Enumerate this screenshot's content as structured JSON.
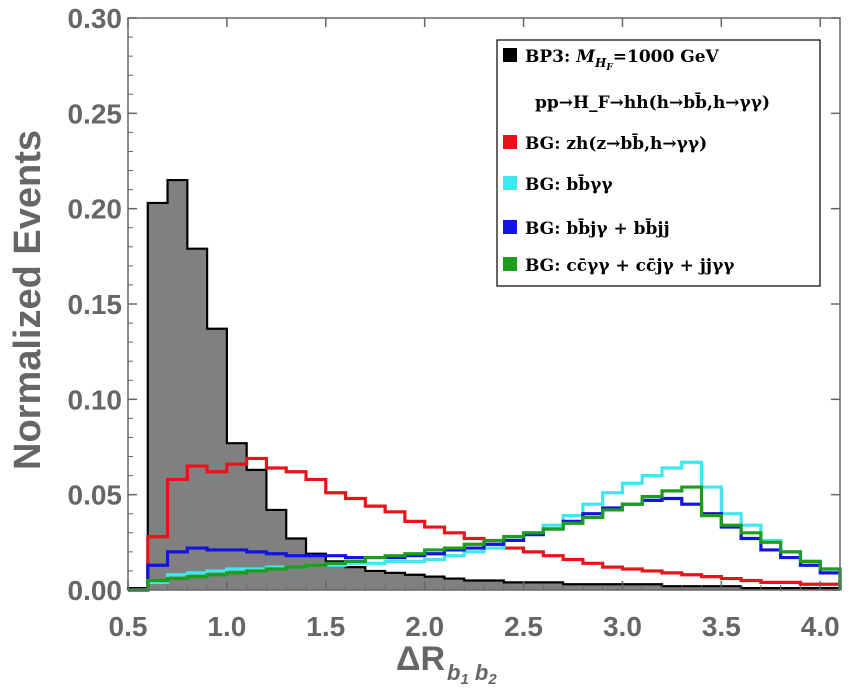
{
  "chart_data": {
    "type": "histogram",
    "xlabel": "ΔR",
    "xlabel_subscript": "b1 b2",
    "ylabel": "Normalized Events",
    "xlim": [
      0.5,
      4.1
    ],
    "ylim": [
      0.0,
      0.3
    ],
    "x_ticks": [
      "0.5",
      "1.0",
      "1.5",
      "2.0",
      "2.5",
      "3.0",
      "3.5",
      "4.0"
    ],
    "y_ticks": [
      "0.00",
      "0.05",
      "0.10",
      "0.15",
      "0.20",
      "0.25",
      "0.30"
    ],
    "grid": false,
    "legend_position": "top-right",
    "bin_width": 0.1,
    "bin_start": 0.5,
    "series": [
      {
        "name_parts": [
          "BP3: ",
          "M",
          "H",
          "F",
          "=1000 GeV"
        ],
        "name_line2": "pp→H_F→hh(h→bb̄,h→γγ)",
        "color": "#000000",
        "fill": "#808080",
        "filled": true,
        "values": [
          0.001,
          0.203,
          0.215,
          0.179,
          0.137,
          0.077,
          0.063,
          0.042,
          0.027,
          0.019,
          0.015,
          0.012,
          0.01,
          0.009,
          0.008,
          0.007,
          0.006,
          0.005,
          0.005,
          0.004,
          0.004,
          0.004,
          0.003,
          0.003,
          0.003,
          0.003,
          0.003,
          0.002,
          0.002,
          0.002,
          0.002,
          0.001,
          0.001,
          0.001,
          0.001,
          0.001
        ]
      },
      {
        "name": "BG: zh(z→bb̄,h→γγ)",
        "color": "#e8141c",
        "filled": false,
        "values": [
          0.0,
          0.028,
          0.058,
          0.065,
          0.062,
          0.066,
          0.069,
          0.064,
          0.062,
          0.058,
          0.051,
          0.048,
          0.044,
          0.041,
          0.036,
          0.033,
          0.03,
          0.027,
          0.024,
          0.022,
          0.02,
          0.018,
          0.016,
          0.014,
          0.012,
          0.011,
          0.01,
          0.009,
          0.008,
          0.007,
          0.006,
          0.005,
          0.004,
          0.004,
          0.003,
          0.003
        ]
      },
      {
        "name": "BG: bb̄γγ",
        "color": "#3fe8ee",
        "filled": false,
        "values": [
          0.0,
          0.004,
          0.008,
          0.009,
          0.01,
          0.011,
          0.011,
          0.012,
          0.012,
          0.013,
          0.013,
          0.014,
          0.014,
          0.015,
          0.015,
          0.016,
          0.018,
          0.02,
          0.022,
          0.026,
          0.03,
          0.034,
          0.039,
          0.045,
          0.051,
          0.056,
          0.06,
          0.064,
          0.067,
          0.054,
          0.04,
          0.034,
          0.026,
          0.02,
          0.015,
          0.011
        ]
      },
      {
        "name": "BG: bb̄jγ + bb̄jj",
        "color": "#1414e0",
        "filled": false,
        "values": [
          0.0,
          0.013,
          0.02,
          0.022,
          0.021,
          0.021,
          0.02,
          0.019,
          0.018,
          0.018,
          0.018,
          0.017,
          0.017,
          0.017,
          0.018,
          0.019,
          0.021,
          0.022,
          0.024,
          0.026,
          0.029,
          0.032,
          0.036,
          0.04,
          0.043,
          0.045,
          0.047,
          0.048,
          0.045,
          0.04,
          0.033,
          0.027,
          0.021,
          0.017,
          0.013,
          0.009
        ]
      },
      {
        "name": "BG: cc̄γγ + cc̄jγ + jjγγ",
        "color": "#1c9e1c",
        "filled": false,
        "values": [
          0.0,
          0.005,
          0.006,
          0.007,
          0.008,
          0.009,
          0.01,
          0.011,
          0.012,
          0.013,
          0.014,
          0.015,
          0.017,
          0.018,
          0.019,
          0.021,
          0.022,
          0.024,
          0.026,
          0.028,
          0.03,
          0.032,
          0.035,
          0.038,
          0.042,
          0.045,
          0.049,
          0.052,
          0.054,
          0.039,
          0.034,
          0.03,
          0.025,
          0.02,
          0.015,
          0.011
        ]
      }
    ]
  }
}
